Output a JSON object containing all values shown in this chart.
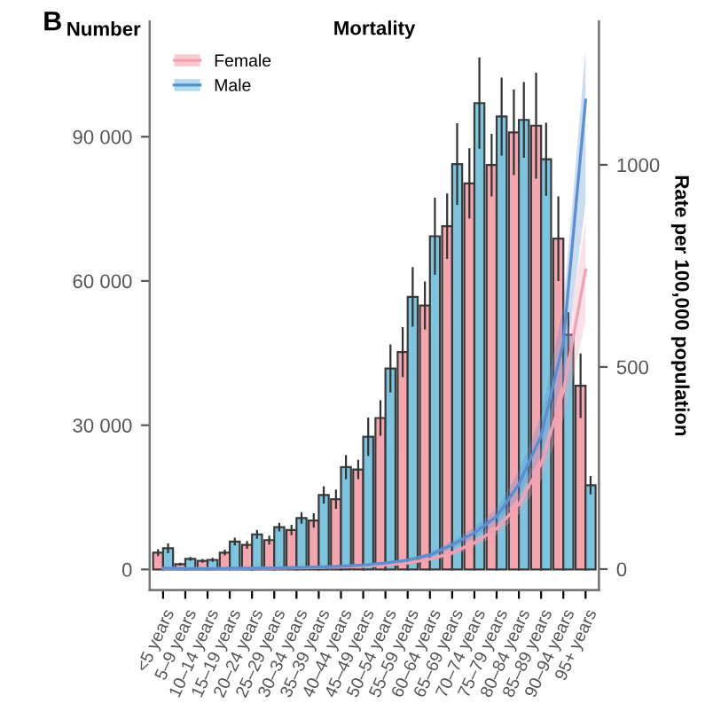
{
  "chart_data": {
    "type": "bar",
    "title": "Mortality",
    "ylabel": "Number",
    "y2label": "Rate per 100,000 population",
    "annotations": [
      "B"
    ],
    "categories": [
      "<5 years",
      "5–9 years",
      "10–14 years",
      "15–19 years",
      "20–24 years",
      "25–29 years",
      "30–34 years",
      "35–39 years",
      "40–44 years",
      "45–49 years",
      "50–54 years",
      "55–59 years",
      "60–64 years",
      "65–69 years",
      "70–74 years",
      "75–79 years",
      "80–84 years",
      "85–89 years",
      "90–94 years",
      "95+ years"
    ],
    "series": [
      {
        "name": "Female",
        "color": "#f4a6b0",
        "values": [
          3500,
          1100,
          1800,
          3500,
          5100,
          6100,
          8200,
          10200,
          14600,
          20800,
          31500,
          45200,
          54900,
          71400,
          80300,
          84100,
          90900,
          92300,
          68800,
          38200
        ],
        "errors": [
          700,
          300,
          400,
          600,
          800,
          900,
          1100,
          1500,
          2000,
          2000,
          3700,
          5200,
          5000,
          6800,
          7300,
          6500,
          8900,
          11000,
          8800,
          6700
        ]
      },
      {
        "name": "Male",
        "color": "#7ec4de",
        "values": [
          4400,
          2200,
          2000,
          5800,
          7300,
          8800,
          10700,
          15500,
          21300,
          27600,
          41800,
          56700,
          69300,
          84300,
          97000,
          94200,
          93500,
          85300,
          48800,
          17500
        ],
        "errors": [
          1000,
          400,
          400,
          800,
          900,
          900,
          1200,
          1800,
          2500,
          4000,
          5000,
          6200,
          8000,
          8500,
          9500,
          8100,
          7900,
          7600,
          4700,
          1900
        ]
      },
      {
        "type": "line",
        "axis": "y2",
        "color": "#f3a0b4",
        "values": [
          2,
          1,
          1,
          1,
          2,
          2,
          3,
          4,
          5,
          7,
          10,
          15,
          25,
          40,
          65,
          100,
          160,
          260,
          440,
          740
        ],
        "lower": [
          1,
          0,
          0,
          0,
          1,
          1,
          2,
          3,
          4,
          5,
          8,
          12,
          20,
          33,
          55,
          85,
          135,
          220,
          370,
          612
        ],
        "upper": [
          3,
          2,
          2,
          2,
          3,
          3,
          4,
          5,
          6,
          9,
          12,
          18,
          30,
          47,
          75,
          115,
          185,
          300,
          510,
          864
        ]
      },
      {
        "type": "line",
        "axis": "y2",
        "color": "#5b8fd0",
        "values": [
          3,
          1,
          1,
          2,
          2,
          3,
          4,
          5,
          7,
          10,
          15,
          22,
          35,
          60,
          90,
          130,
          210,
          330,
          560,
          1160
        ],
        "lower": [
          2,
          0,
          0,
          1,
          1,
          2,
          3,
          4,
          5,
          8,
          12,
          18,
          29,
          50,
          76,
          110,
          178,
          280,
          470,
          906
        ],
        "upper": [
          4,
          2,
          2,
          3,
          3,
          4,
          5,
          6,
          9,
          12,
          18,
          26,
          41,
          70,
          104,
          150,
          242,
          380,
          650,
          1285
        ]
      }
    ],
    "ylim": [
      -4300,
      114000
    ],
    "yticks": [
      {
        "value": 0,
        "label": "0"
      },
      {
        "value": 30000,
        "label": "30 000"
      },
      {
        "value": 60000,
        "label": "60 000"
      },
      {
        "value": 90000,
        "label": "90 000"
      }
    ],
    "y2lim": [
      -52,
      1355
    ],
    "y2ticks": [
      0,
      500,
      1000
    ],
    "legend": "top left",
    "grid": false
  }
}
